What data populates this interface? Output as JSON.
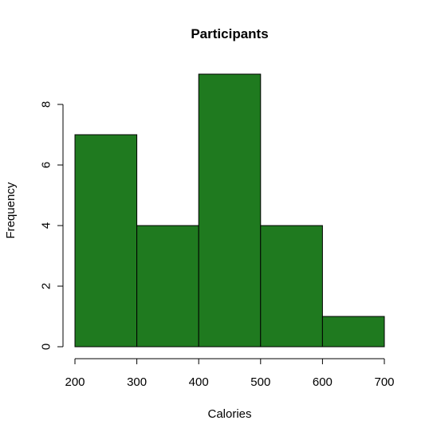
{
  "chart_data": {
    "type": "bar",
    "title": "Participants",
    "xlabel": "Calories",
    "ylabel": "Frequency",
    "bins": [
      {
        "from": 200,
        "to": 300,
        "value": 7
      },
      {
        "from": 300,
        "to": 400,
        "value": 4
      },
      {
        "from": 400,
        "to": 500,
        "value": 9
      },
      {
        "from": 500,
        "to": 600,
        "value": 4
      },
      {
        "from": 600,
        "to": 700,
        "value": 1
      }
    ],
    "xlim": [
      200,
      700
    ],
    "ylim": [
      0,
      9
    ],
    "x_ticks": [
      200,
      300,
      400,
      500,
      600,
      700
    ],
    "y_ticks": [
      0,
      2,
      4,
      6,
      8
    ],
    "grid": false,
    "legend": "none",
    "bar_color": "#1f7a1f",
    "edge_color": "#000000"
  }
}
